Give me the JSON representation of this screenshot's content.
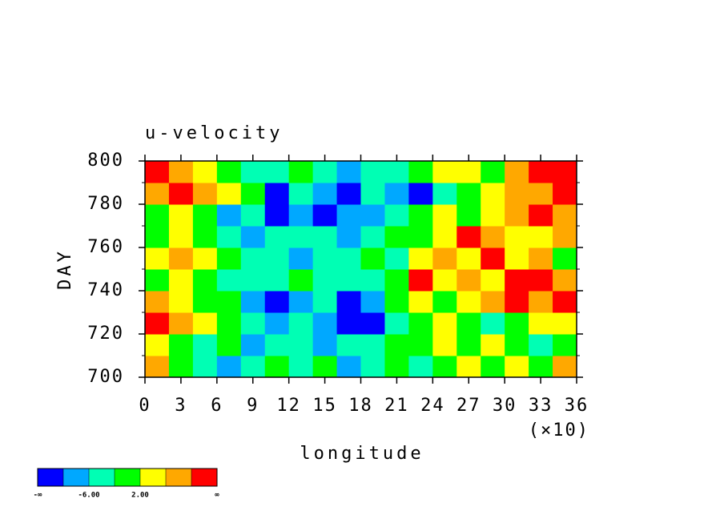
{
  "chart_data": {
    "type": "heatmap",
    "title": "u-velocity",
    "x_label": "longitude",
    "x_multiplier": "(×10)",
    "y_label": "DAY",
    "xlim": [
      0,
      36
    ],
    "xticks": [
      0,
      3,
      6,
      9,
      12,
      15,
      18,
      21,
      24,
      27,
      30,
      33,
      36
    ],
    "ylim": [
      700,
      800
    ],
    "yticks": [
      700,
      720,
      740,
      760,
      780,
      800
    ],
    "yminorticks": [
      710,
      730,
      750,
      770,
      790
    ],
    "x": [
      1,
      3,
      5,
      7,
      9,
      11,
      13,
      15,
      17,
      19,
      21,
      23,
      25,
      27,
      29,
      31,
      33,
      35
    ],
    "y": [
      705,
      715,
      725,
      735,
      745,
      755,
      765,
      775,
      785,
      795
    ],
    "values": [
      [
        8,
        0,
        -4,
        -8,
        -4,
        0,
        -4,
        0,
        -8,
        -4,
        0,
        -4,
        0,
        4,
        0,
        4,
        0,
        8
      ],
      [
        4,
        0,
        -4,
        0,
        -8,
        -4,
        -4,
        -8,
        -4,
        -4,
        0,
        0,
        4,
        0,
        4,
        0,
        -4,
        0
      ],
      [
        12,
        8,
        4,
        0,
        -4,
        -8,
        -4,
        -8,
        -12,
        -12,
        -4,
        0,
        4,
        0,
        -4,
        0,
        4,
        4
      ],
      [
        8,
        4,
        0,
        0,
        -8,
        -12,
        -8,
        -4,
        -12,
        -8,
        0,
        4,
        0,
        4,
        8,
        12,
        8,
        12
      ],
      [
        0,
        4,
        0,
        -4,
        -4,
        -4,
        0,
        -4,
        -4,
        -4,
        0,
        12,
        4,
        8,
        4,
        12,
        12,
        8
      ],
      [
        4,
        8,
        4,
        0,
        -4,
        -4,
        -8,
        -4,
        -4,
        0,
        -4,
        4,
        8,
        4,
        12,
        4,
        8,
        0
      ],
      [
        0,
        4,
        0,
        -4,
        -8,
        -4,
        -4,
        -4,
        -8,
        -4,
        0,
        0,
        4,
        12,
        8,
        4,
        4,
        8
      ],
      [
        0,
        4,
        0,
        -8,
        -4,
        -12,
        -8,
        -12,
        -8,
        -8,
        -4,
        0,
        4,
        0,
        4,
        8,
        12,
        8
      ],
      [
        8,
        12,
        8,
        4,
        0,
        -12,
        -4,
        -8,
        -12,
        -4,
        -8,
        -12,
        -4,
        0,
        4,
        8,
        8,
        12
      ],
      [
        12,
        8,
        4,
        0,
        -4,
        -4,
        0,
        -4,
        -8,
        -4,
        -4,
        0,
        4,
        4,
        0,
        8,
        12,
        12
      ]
    ],
    "colorbar": {
      "colors": [
        "#0000ff",
        "#00a8ff",
        "#00ffb4",
        "#00ff00",
        "#ffff00",
        "#ffa800",
        "#ff0000"
      ],
      "levels": [
        -10,
        -6,
        -2,
        2,
        6,
        10
      ],
      "level_labels": [
        null,
        "-6.00",
        null,
        "2.00",
        null,
        null
      ],
      "end_labels": [
        "-∞",
        "∞"
      ]
    }
  }
}
